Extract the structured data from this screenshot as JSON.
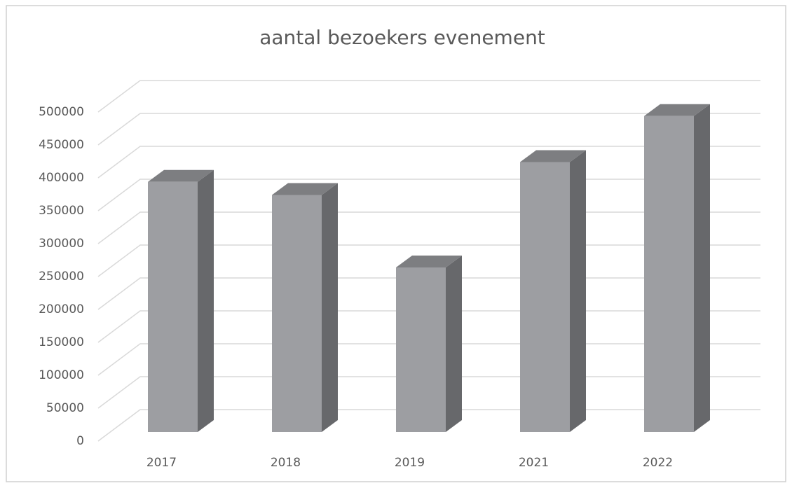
{
  "chart_data": {
    "type": "bar3d",
    "title": "aantal bezoekers evenement",
    "categories": [
      "2017",
      "2018",
      "2019",
      "2021",
      "2022"
    ],
    "values": [
      380000,
      360000,
      250000,
      410000,
      480000
    ],
    "color": "#9d9ea2",
    "ylim": [
      0,
      500000
    ],
    "yticks": [
      0,
      50000,
      100000,
      150000,
      200000,
      250000,
      300000,
      350000,
      400000,
      450000,
      500000
    ],
    "grid": true
  }
}
